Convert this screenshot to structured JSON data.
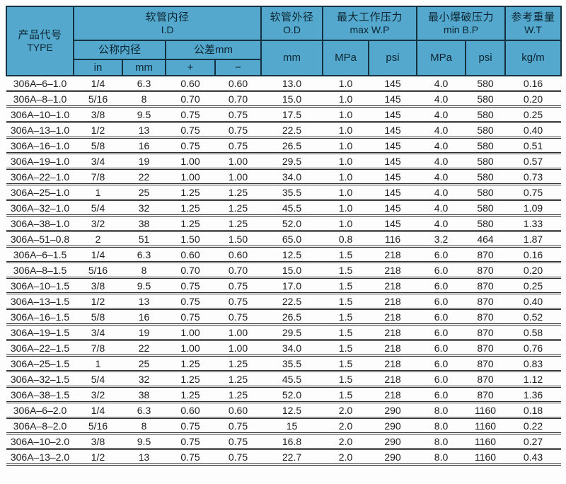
{
  "colors": {
    "header_bg": "#55a8cd",
    "header_border": "#13313f",
    "header_text": "#0c2733",
    "row_line": "#2d2d2d",
    "data_text": "#1c1c1c",
    "page_bg": "#fdfdfd"
  },
  "table": {
    "header": {
      "product_code": {
        "zh": "产品代号",
        "en": "TYPE"
      },
      "inner_diameter": {
        "zh": "软管内径",
        "en": "I.D"
      },
      "nominal": "公称内径",
      "tolerance": "公差mm",
      "sub": {
        "in": "in",
        "mm": "mm",
        "plus": "+",
        "minus": "−"
      },
      "outer_diameter": {
        "zh": "软管外径",
        "en": "O.D",
        "unit": "mm"
      },
      "max_wp": {
        "zh": "最大工作压力",
        "en": "max W.P",
        "mpa": "MPa",
        "psi": "psi"
      },
      "min_bp": {
        "zh": "最小爆破压力",
        "en": "min B.P",
        "mpa": "MPa",
        "psi": "psi"
      },
      "weight": {
        "zh": "参考重量",
        "en": "W.T",
        "unit": "kg/m"
      }
    },
    "rows": [
      [
        "306A–6–1.0",
        "1/4",
        "6.3",
        "0.60",
        "0.60",
        "13.0",
        "1.0",
        "145",
        "4.0",
        "580",
        "0.16"
      ],
      [
        "306A–8–1.0",
        "5/16",
        "8",
        "0.70",
        "0.70",
        "15.0",
        "1.0",
        "145",
        "4.0",
        "580",
        "0.20"
      ],
      [
        "306A–10–1.0",
        "3/8",
        "9.5",
        "0.75",
        "0.75",
        "17.5",
        "1.0",
        "145",
        "4.0",
        "580",
        "0.25"
      ],
      [
        "306A–13–1.0",
        "1/2",
        "13",
        "0.75",
        "0.75",
        "22.5",
        "1.0",
        "145",
        "4.0",
        "580",
        "0.40"
      ],
      [
        "306A–16–1.0",
        "5/8",
        "16",
        "0.75",
        "0.75",
        "26.5",
        "1.0",
        "145",
        "4.0",
        "580",
        "0.51"
      ],
      [
        "306A–19–1.0",
        "3/4",
        "19",
        "1.00",
        "1.00",
        "29.5",
        "1.0",
        "145",
        "4.0",
        "580",
        "0.57"
      ],
      [
        "306A–22–1.0",
        "7/8",
        "22",
        "1.00",
        "1.00",
        "34.0",
        "1.0",
        "145",
        "4.0",
        "580",
        "0.73"
      ],
      [
        "306A–25–1.0",
        "1",
        "25",
        "1.25",
        "1.25",
        "35.5",
        "1.0",
        "145",
        "4.0",
        "580",
        "0.75"
      ],
      [
        "306A–32–1.0",
        "5/4",
        "32",
        "1.25",
        "1.25",
        "45.5",
        "1.0",
        "145",
        "4.0",
        "580",
        "1.09"
      ],
      [
        "306A–38–1.0",
        "3/2",
        "38",
        "1.25",
        "1.25",
        "52.0",
        "1.0",
        "145",
        "4.0",
        "580",
        "1.33"
      ],
      [
        "306A–51–0.8",
        "2",
        "51",
        "1.50",
        "1.50",
        "65.0",
        "0.8",
        "116",
        "3.2",
        "464",
        "1.87"
      ],
      [
        "306A–6–1.5",
        "1/4",
        "6.3",
        "0.60",
        "0.60",
        "12.5",
        "1.5",
        "218",
        "6.0",
        "870",
        "0.16"
      ],
      [
        "306A–8–1.5",
        "5/16",
        "8",
        "0.70",
        "0.70",
        "15.0",
        "1.5",
        "218",
        "6.0",
        "870",
        "0.20"
      ],
      [
        "306A–10–1.5",
        "3/8",
        "9.5",
        "0.75",
        "0.75",
        "17.0",
        "1.5",
        "218",
        "6.0",
        "870",
        "0.25"
      ],
      [
        "306A–13–1.5",
        "1/2",
        "13",
        "0.75",
        "0.75",
        "22.5",
        "1.5",
        "218",
        "6.0",
        "870",
        "0.40"
      ],
      [
        "306A–16–1.5",
        "5/8",
        "16",
        "0.75",
        "0.75",
        "26.5",
        "1.5",
        "218",
        "6.0",
        "870",
        "0.52"
      ],
      [
        "306A–19–1.5",
        "3/4",
        "19",
        "1.00",
        "1.00",
        "29.5",
        "1.5",
        "218",
        "6.0",
        "870",
        "0.58"
      ],
      [
        "306A–22–1.5",
        "7/8",
        "22",
        "1.00",
        "1.00",
        "34.0",
        "1.5",
        "218",
        "6.0",
        "870",
        "0.76"
      ],
      [
        "306A–25–1.5",
        "1",
        "25",
        "1.25",
        "1.25",
        "35.5",
        "1.5",
        "218",
        "6.0",
        "870",
        "0.83"
      ],
      [
        "306A–32–1.5",
        "5/4",
        "32",
        "1.25",
        "1.25",
        "45.5",
        "1.5",
        "218",
        "6.0",
        "870",
        "1.12"
      ],
      [
        "306A–38–1.5",
        "3/2",
        "38",
        "1.25",
        "1.25",
        "52.0",
        "1.5",
        "218",
        "6.0",
        "870",
        "1.36"
      ],
      [
        "306A–6–2.0",
        "1/4",
        "6.3",
        "0.60",
        "0.60",
        "12.5",
        "2.0",
        "290",
        "8.0",
        "1160",
        "0.18"
      ],
      [
        "306A–8–2.0",
        "5/16",
        "8",
        "0.75",
        "0.75",
        "15",
        "2.0",
        "290",
        "8.0",
        "1160",
        "0.22"
      ],
      [
        "306A–10–2.0",
        "3/8",
        "9.5",
        "0.75",
        "0.75",
        "16.8",
        "2.0",
        "290",
        "8.0",
        "1160",
        "0.27"
      ],
      [
        "306A–13–2.0",
        "1/2",
        "13",
        "0.75",
        "0.75",
        "22.7",
        "2.0",
        "290",
        "8.0",
        "1160",
        "0.43"
      ]
    ]
  }
}
